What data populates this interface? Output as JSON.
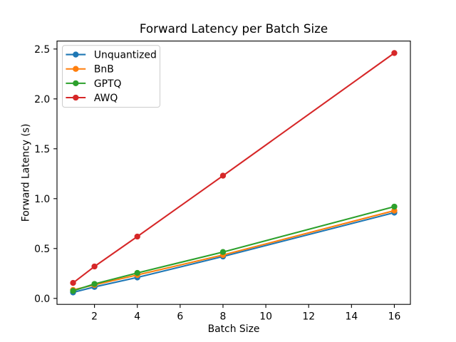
{
  "figure": {
    "background": "#ffffff"
  },
  "chart_data": {
    "type": "line",
    "title": "Forward Latency per Batch Size",
    "xlabel": "Batch Size",
    "ylabel": "Forward Latency (s)",
    "x": [
      1,
      2,
      4,
      8,
      16
    ],
    "series": [
      {
        "name": "Unquantized",
        "color": "#1f77b4",
        "marker": "circle",
        "values": [
          0.06,
          0.115,
          0.21,
          0.42,
          0.86
        ]
      },
      {
        "name": "BnB",
        "color": "#ff7f0e",
        "marker": "circle",
        "values": [
          0.085,
          0.135,
          0.235,
          0.435,
          0.88
        ]
      },
      {
        "name": "GPTQ",
        "color": "#2ca02c",
        "marker": "circle",
        "values": [
          0.075,
          0.145,
          0.255,
          0.465,
          0.92
        ]
      },
      {
        "name": "AWQ",
        "color": "#d62728",
        "marker": "circle",
        "values": [
          0.155,
          0.32,
          0.62,
          1.23,
          2.46
        ]
      }
    ],
    "xticks": [
      2,
      4,
      6,
      8,
      10,
      12,
      14,
      16
    ],
    "yticks": [
      0.0,
      0.5,
      1.0,
      1.5,
      2.0,
      2.5
    ],
    "xlim": [
      0.25,
      16.75
    ],
    "ylim": [
      -0.06,
      2.58
    ],
    "grid": false,
    "legend": {
      "position": "upper-left",
      "entries": [
        "Unquantized",
        "BnB",
        "GPTQ",
        "AWQ"
      ],
      "frame_color": "#cccccc",
      "frame_fill": "#ffffff"
    },
    "axis_color": "#000000",
    "text_color": "#000000"
  }
}
